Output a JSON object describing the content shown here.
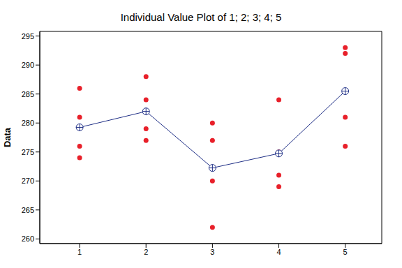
{
  "chart_data": {
    "type": "scatter",
    "title": "Individual Value Plot of 1; 2; 3; 4; 5",
    "y_label": "Data",
    "x": [
      1,
      2,
      3,
      4,
      5
    ],
    "xlim": [
      0.4,
      5.55
    ],
    "xticks": [
      1,
      2,
      3,
      4,
      5
    ],
    "ylim": [
      259.2,
      295.8
    ],
    "yticks": [
      260,
      265,
      270,
      275,
      280,
      285,
      290,
      295
    ],
    "grid": false,
    "series": [
      {
        "type": "scatter",
        "marker": "circle",
        "color": "#e8202a",
        "values": [
          [
            286,
            281,
            276,
            274
          ],
          [
            288,
            284,
            279,
            277
          ],
          [
            280,
            277,
            270,
            262
          ],
          [
            284,
            275,
            271,
            269
          ],
          [
            293,
            292,
            281,
            276
          ]
        ]
      },
      {
        "type": "line",
        "marker": "circle-plus",
        "color": "#1f2f86",
        "values": [
          279.25,
          282,
          272.25,
          274.75,
          285.5
        ]
      }
    ]
  }
}
